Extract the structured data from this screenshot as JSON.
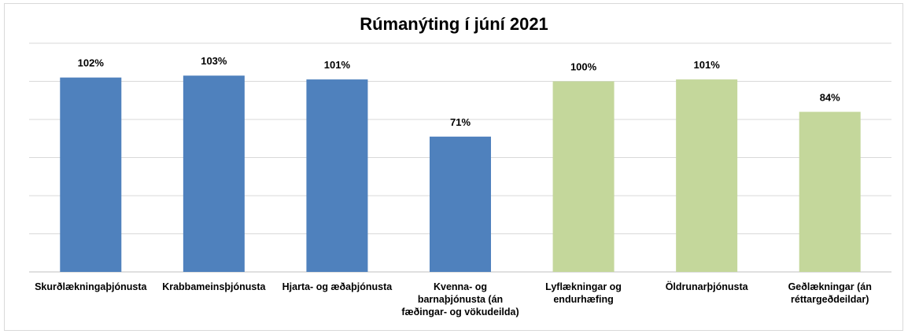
{
  "chart_data": {
    "type": "bar",
    "title": "Rúmanýting í júní 2021",
    "categories": [
      "Skurðlækningaþjónusta",
      "Krabbameinsþjónusta",
      "Hjarta- og æðaþjónusta",
      "Kvenna- og barnaþjónusta (án fæðingar- og vökudeilda)",
      "Lyflækningar og endurhæfing",
      "Öldrunarþjónusta",
      "Geðlækningar (án réttargeðdeildar)"
    ],
    "values": [
      102,
      103,
      101,
      71,
      100,
      101,
      84
    ],
    "data_labels": [
      "102%",
      "103%",
      "101%",
      "71%",
      "100%",
      "101%",
      "84%"
    ],
    "bar_colors": [
      "#4f81bd",
      "#4f81bd",
      "#4f81bd",
      "#4f81bd",
      "#c4d79b",
      "#c4d79b",
      "#c4d79b"
    ],
    "xlabel": "",
    "ylabel": "",
    "ylim": [
      0,
      120
    ],
    "y_tick_step": 20,
    "y_tick_labels_shown": false,
    "grid": true,
    "legend": "none"
  }
}
